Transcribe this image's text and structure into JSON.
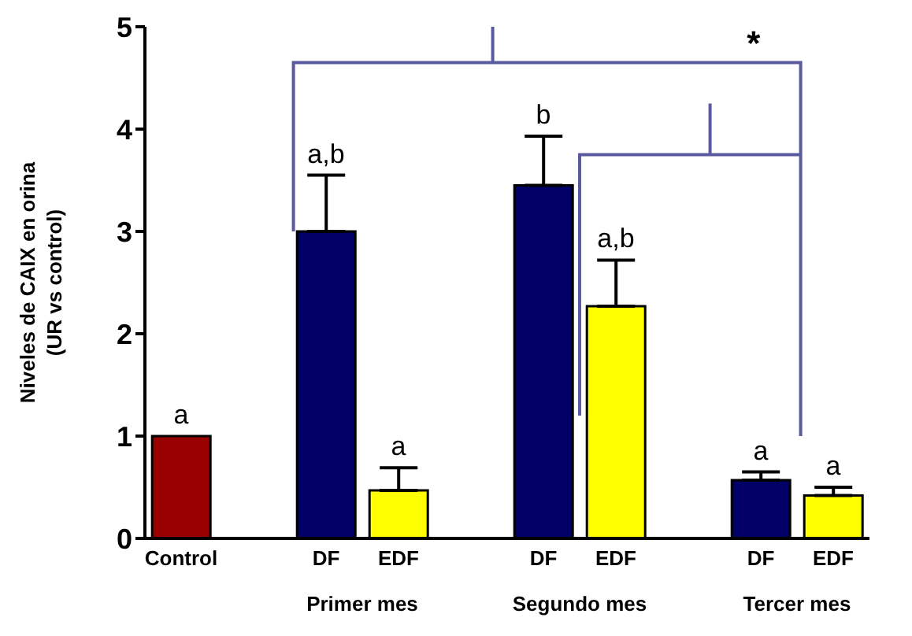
{
  "chart_data": {
    "type": "bar",
    "ylabel": "Niveles de CAIX en orina\n(UR vs control)",
    "categories": [
      "Control",
      null,
      "DF",
      "EDF",
      null,
      "DF",
      "EDF",
      null,
      "DF",
      "EDF"
    ],
    "values": [
      1.0,
      null,
      3.0,
      0.47,
      null,
      3.45,
      2.27,
      null,
      0.57,
      0.42
    ],
    "colors": [
      "#990000",
      null,
      "#000066",
      "#ffff00",
      null,
      "#000066",
      "#ffff00",
      null,
      "#000066",
      "#ffff00"
    ],
    "errors": [
      null,
      null,
      0.55,
      0.22,
      null,
      0.48,
      0.45,
      null,
      0.08,
      0.08
    ],
    "value_labels": [
      "a",
      null,
      "a,b",
      "a",
      null,
      "b",
      "a,b",
      null,
      "a",
      "a"
    ],
    "annotations": [
      "Primer mes",
      "Segundo mes",
      "Tercer mes",
      "*"
    ],
    "ylim": [
      0,
      5
    ],
    "yticks": [
      0,
      1,
      2,
      3,
      4,
      5
    ]
  }
}
